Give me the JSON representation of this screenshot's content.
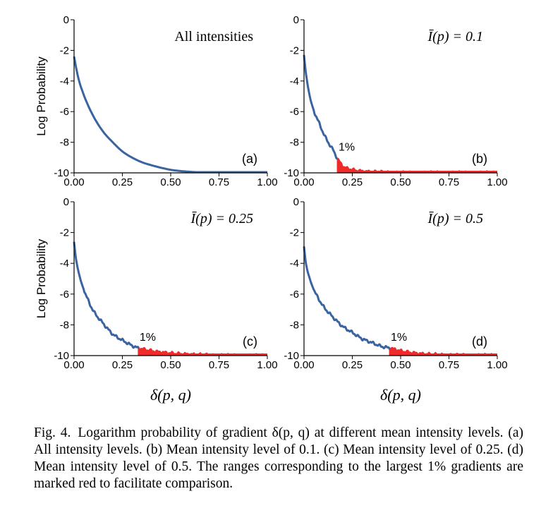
{
  "figure": {
    "caption_label": "Fig. 4.",
    "caption_text": "Logarithm probability of gradient δ(p, q) at different mean intensity levels. (a) All intensity levels. (b) Mean intensity level of 0.1. (c) Mean intensity level of 0.25. (d) Mean intensity level of 0.5. The ranges corresponding to the largest 1% gradients are marked red to facilitate comparison."
  },
  "colors": {
    "curve": "#3a64a0",
    "highlight": "#ee2a2a",
    "axis": "#000000"
  },
  "chart_data": [
    {
      "type": "line",
      "panel_label": "(a)",
      "title": "All intensities",
      "xlabel": "",
      "ylabel": "Log Probability",
      "xlim": [
        0,
        1
      ],
      "ylim": [
        -10,
        0
      ],
      "xticks": [
        "0.00",
        "0.25",
        "0.50",
        "0.75",
        "1.00"
      ],
      "yticks": [
        "0",
        "-2",
        "-4",
        "-6",
        "-8",
        "-10"
      ],
      "highlight_from": null,
      "highlight_label": "",
      "x": [
        0.0,
        0.02,
        0.05,
        0.1,
        0.15,
        0.2,
        0.25,
        0.3,
        0.35,
        0.4,
        0.5,
        0.6,
        0.7,
        0.8,
        0.9,
        1.0
      ],
      "y": [
        -2.4,
        -3.7,
        -4.9,
        -6.3,
        -7.3,
        -8.0,
        -8.6,
        -9.0,
        -9.3,
        -9.5,
        -9.8,
        -9.93,
        -9.98,
        -10.0,
        -10.0,
        -10.0
      ]
    },
    {
      "type": "line",
      "panel_label": "(b)",
      "title": "Ī(p) = 0.1",
      "xlabel": "",
      "ylabel": "",
      "xlim": [
        0,
        1
      ],
      "ylim": [
        -10,
        0
      ],
      "xticks": [
        "0.00",
        "0.25",
        "0.50",
        "0.75",
        "1.00"
      ],
      "yticks": [
        "0",
        "-2",
        "-4",
        "-6",
        "-8",
        "-10"
      ],
      "highlight_from": 0.17,
      "highlight_label": "1%",
      "x": [
        0.0,
        0.01,
        0.03,
        0.05,
        0.08,
        0.1,
        0.12,
        0.15,
        0.17,
        0.2,
        0.25,
        0.3,
        0.4,
        0.5,
        0.6,
        0.7,
        1.0
      ],
      "y": [
        -2.3,
        -3.5,
        -5.0,
        -5.9,
        -6.8,
        -7.4,
        -7.9,
        -8.5,
        -9.0,
        -9.55,
        -9.8,
        -9.9,
        -9.96,
        -10.0,
        -10.0,
        -10.0,
        -10.0
      ]
    },
    {
      "type": "line",
      "panel_label": "(c)",
      "title": "Ī(p) = 0.25",
      "xlabel": "δ(p, q)",
      "ylabel": "Log Probability",
      "xlim": [
        0,
        1
      ],
      "ylim": [
        -10,
        0
      ],
      "xticks": [
        "0.00",
        "0.25",
        "0.50",
        "0.75",
        "1.00"
      ],
      "yticks": [
        "0",
        "-2",
        "-4",
        "-6",
        "-8",
        "-10"
      ],
      "highlight_from": 0.33,
      "highlight_label": "1%",
      "x": [
        0.0,
        0.01,
        0.03,
        0.05,
        0.08,
        0.1,
        0.15,
        0.2,
        0.25,
        0.3,
        0.33,
        0.4,
        0.5,
        0.6,
        0.7,
        0.8,
        1.0
      ],
      "y": [
        -2.6,
        -3.7,
        -4.9,
        -5.7,
        -6.6,
        -7.1,
        -7.9,
        -8.6,
        -9.0,
        -9.35,
        -9.5,
        -9.7,
        -9.85,
        -9.93,
        -9.97,
        -10.0,
        -10.0
      ]
    },
    {
      "type": "line",
      "panel_label": "(d)",
      "title": "Ī(p) = 0.5",
      "xlabel": "δ(p, q)",
      "ylabel": "",
      "xlim": [
        0,
        1
      ],
      "ylim": [
        -10,
        0
      ],
      "xticks": [
        "0.00",
        "0.25",
        "0.50",
        "0.75",
        "1.00"
      ],
      "yticks": [
        "0",
        "-2",
        "-4",
        "-6",
        "-8",
        "-10"
      ],
      "highlight_from": 0.44,
      "highlight_label": "1%",
      "x": [
        0.0,
        0.01,
        0.03,
        0.05,
        0.08,
        0.1,
        0.15,
        0.2,
        0.25,
        0.3,
        0.35,
        0.4,
        0.44,
        0.5,
        0.6,
        0.7,
        0.8,
        1.0
      ],
      "y": [
        -2.9,
        -4.0,
        -5.0,
        -5.7,
        -6.4,
        -6.8,
        -7.5,
        -8.1,
        -8.5,
        -8.9,
        -9.15,
        -9.4,
        -9.5,
        -9.7,
        -9.88,
        -9.95,
        -9.98,
        -10.0
      ]
    }
  ]
}
